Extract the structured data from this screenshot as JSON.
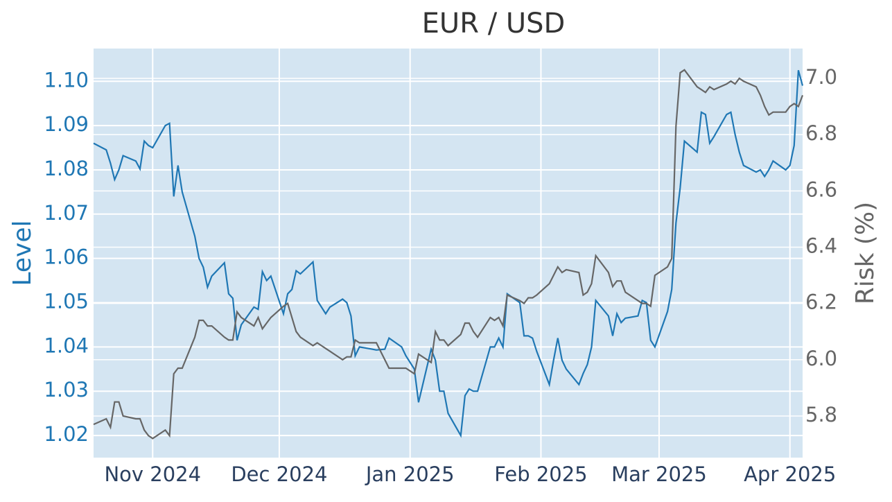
{
  "chart_data": {
    "type": "line",
    "title": "EUR / USD",
    "ylabel": "Level",
    "y2label": "Risk (%)",
    "x": [
      "2024-10-18",
      "2024-10-21",
      "2024-10-22",
      "2024-10-23",
      "2024-10-24",
      "2024-10-25",
      "2024-10-28",
      "2024-10-29",
      "2024-10-30",
      "2024-10-31",
      "2024-11-01",
      "2024-11-04",
      "2024-11-05",
      "2024-11-06",
      "2024-11-07",
      "2024-11-08",
      "2024-11-11",
      "2024-11-12",
      "2024-11-13",
      "2024-11-14",
      "2024-11-15",
      "2024-11-18",
      "2024-11-19",
      "2024-11-20",
      "2024-11-21",
      "2024-11-22",
      "2024-11-25",
      "2024-11-26",
      "2024-11-27",
      "2024-11-28",
      "2024-11-29",
      "2024-12-02",
      "2024-12-03",
      "2024-12-04",
      "2024-12-05",
      "2024-12-06",
      "2024-12-09",
      "2024-12-10",
      "2024-12-11",
      "2024-12-12",
      "2024-12-13",
      "2024-12-16",
      "2024-12-17",
      "2024-12-18",
      "2024-12-19",
      "2024-12-20",
      "2024-12-23",
      "2024-12-24",
      "2024-12-26",
      "2024-12-27",
      "2024-12-30",
      "2024-12-31",
      "2025-01-02",
      "2025-01-03",
      "2025-01-06",
      "2025-01-07",
      "2025-01-08",
      "2025-01-09",
      "2025-01-10",
      "2025-01-13",
      "2025-01-14",
      "2025-01-15",
      "2025-01-16",
      "2025-01-17",
      "2025-01-20",
      "2025-01-21",
      "2025-01-22",
      "2025-01-23",
      "2025-01-24",
      "2025-01-27",
      "2025-01-28",
      "2025-01-29",
      "2025-01-30",
      "2025-01-31",
      "2025-02-03",
      "2025-02-04",
      "2025-02-05",
      "2025-02-06",
      "2025-02-07",
      "2025-02-10",
      "2025-02-11",
      "2025-02-12",
      "2025-02-13",
      "2025-02-14",
      "2025-02-17",
      "2025-02-18",
      "2025-02-19",
      "2025-02-20",
      "2025-02-21",
      "2025-02-24",
      "2025-02-25",
      "2025-02-26",
      "2025-02-27",
      "2025-02-28",
      "2025-03-03",
      "2025-03-04",
      "2025-03-05",
      "2025-03-06",
      "2025-03-07",
      "2025-03-10",
      "2025-03-11",
      "2025-03-12",
      "2025-03-13",
      "2025-03-14",
      "2025-03-17",
      "2025-03-18",
      "2025-03-19",
      "2025-03-20",
      "2025-03-21",
      "2025-03-24",
      "2025-03-25",
      "2025-03-26",
      "2025-03-27",
      "2025-03-28",
      "2025-03-31",
      "2025-04-01",
      "2025-04-02",
      "2025-04-03",
      "2025-04-04"
    ],
    "series": [
      {
        "name": "Level",
        "color": "#1f77b4",
        "axis": "y",
        "values": [
          1.086,
          1.0845,
          1.0815,
          1.0778,
          1.08,
          1.0832,
          1.082,
          1.0802,
          1.0865,
          1.0855,
          1.085,
          1.09,
          1.0905,
          1.074,
          1.081,
          1.075,
          1.065,
          1.06,
          1.058,
          1.0535,
          1.056,
          1.059,
          1.052,
          1.051,
          1.0415,
          1.045,
          1.049,
          1.0485,
          1.057,
          1.055,
          1.056,
          1.0475,
          1.052,
          1.053,
          1.0572,
          1.0565,
          1.0592,
          1.0505,
          1.049,
          1.0475,
          1.049,
          1.0508,
          1.05,
          1.047,
          1.038,
          1.04,
          1.0395,
          1.0393,
          1.0395,
          1.042,
          1.04,
          1.038,
          1.035,
          1.0275,
          1.0395,
          1.037,
          1.03,
          1.03,
          1.025,
          1.02,
          1.029,
          1.0305,
          1.03,
          1.03,
          1.04,
          1.04,
          1.042,
          1.04,
          1.052,
          1.05,
          1.0425,
          1.0425,
          1.042,
          1.039,
          1.0315,
          1.037,
          1.042,
          1.037,
          1.035,
          1.0315,
          1.034,
          1.036,
          1.04,
          1.0505,
          1.047,
          1.0425,
          1.0475,
          1.0455,
          1.0465,
          1.047,
          1.0505,
          1.05,
          1.0415,
          1.04,
          1.048,
          1.053,
          1.068,
          1.076,
          1.0865,
          1.084,
          1.093,
          1.0925,
          1.086,
          1.0875,
          1.0925,
          1.093,
          1.088,
          1.084,
          1.081,
          1.0795,
          1.08,
          1.0785,
          1.08,
          1.082,
          1.08,
          1.081,
          1.0855,
          1.1025,
          1.099
        ]
      },
      {
        "name": "Risk (%)",
        "color": "#666666",
        "axis": "y2",
        "values": [
          5.77,
          5.79,
          5.76,
          5.85,
          5.85,
          5.8,
          5.79,
          5.79,
          5.75,
          5.73,
          5.72,
          5.75,
          5.73,
          5.95,
          5.97,
          5.97,
          6.08,
          6.14,
          6.14,
          6.12,
          6.12,
          6.08,
          6.07,
          6.07,
          6.17,
          6.15,
          6.12,
          6.15,
          6.11,
          6.13,
          6.15,
          6.19,
          6.2,
          6.15,
          6.1,
          6.08,
          6.05,
          6.06,
          6.05,
          6.04,
          6.03,
          6.0,
          6.01,
          6.01,
          6.07,
          6.06,
          6.06,
          6.06,
          6.0,
          5.97,
          5.97,
          5.97,
          5.95,
          6.02,
          5.99,
          6.1,
          6.07,
          6.07,
          6.05,
          6.09,
          6.13,
          6.13,
          6.1,
          6.08,
          6.15,
          6.14,
          6.15,
          6.12,
          6.23,
          6.21,
          6.2,
          6.22,
          6.22,
          6.23,
          6.27,
          6.3,
          6.33,
          6.31,
          6.32,
          6.31,
          6.23,
          6.24,
          6.27,
          6.37,
          6.31,
          6.26,
          6.28,
          6.28,
          6.24,
          6.21,
          6.2,
          6.2,
          6.19,
          6.3,
          6.33,
          6.36,
          6.83,
          7.02,
          7.03,
          6.97,
          6.96,
          6.95,
          6.97,
          6.96,
          6.98,
          6.99,
          6.98,
          7.0,
          6.99,
          6.97,
          6.94,
          6.9,
          6.87,
          6.88,
          6.88,
          6.9,
          6.91,
          6.9,
          6.94
        ]
      }
    ],
    "xlim": [
      "2024-10-18",
      "2025-04-04"
    ],
    "xticks": [
      {
        "value": "2024-11-01",
        "label": "Nov 2024"
      },
      {
        "value": "2024-12-01",
        "label": "Dec 2024"
      },
      {
        "value": "2025-01-01",
        "label": "Jan 2025"
      },
      {
        "value": "2025-02-01",
        "label": "Feb 2025"
      },
      {
        "value": "2025-03-01",
        "label": "Mar 2025"
      },
      {
        "value": "2025-04-01",
        "label": "Apr 2025"
      }
    ],
    "ylim": [
      1.015,
      1.1074
    ],
    "yticks": [
      1.02,
      1.03,
      1.04,
      1.05,
      1.06,
      1.07,
      1.08,
      1.09,
      {
        "value": 1.1,
        "label": "1.10"
      }
    ],
    "y2lim": [
      5.652,
      7.106
    ],
    "y2ticks": [
      5.8,
      {
        "value": 6,
        "label": "6.0"
      },
      6.2,
      6.4,
      6.6,
      6.8,
      {
        "value": 7,
        "label": "7.0"
      }
    ],
    "grid": true
  }
}
